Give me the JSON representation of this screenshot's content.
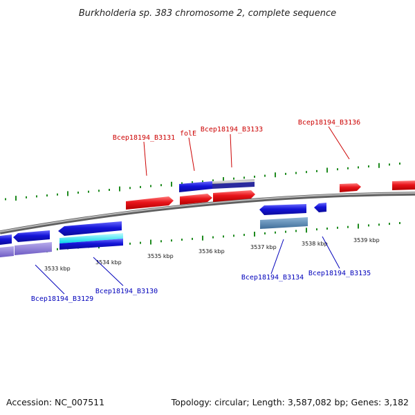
{
  "header": {
    "title": "Burkholderia sp. 383 chromosome 2, complete sequence"
  },
  "footer": {
    "accession": "Accession: NC_007511",
    "topology": "Topology: circular; Length: 3,587,082 bp; Genes: 3,182"
  },
  "map": {
    "kbp_labels": [
      "3533 kbp",
      "3534 kbp",
      "3535 kbp",
      "3536 kbp",
      "3537 kbp",
      "3538 kbp",
      "3539 kbp"
    ],
    "top_gene_labels": [
      "Bcep18194_B3131",
      "folE",
      "Bcep18194_B3133",
      "Bcep18194_B3136"
    ],
    "bottom_gene_labels": [
      "Bcep18194_B3134",
      "Bcep18194_B3135",
      "Bcep18194_B3130",
      "Bcep18194_B3129"
    ],
    "colors": {
      "forward_gene": "#e8141a",
      "reverse_gene": "#1414d8",
      "forward_label": "#cc0000",
      "reverse_label": "#0000bb",
      "backbone": "#8c8c8c",
      "tick": "#1e8a1e"
    }
  }
}
